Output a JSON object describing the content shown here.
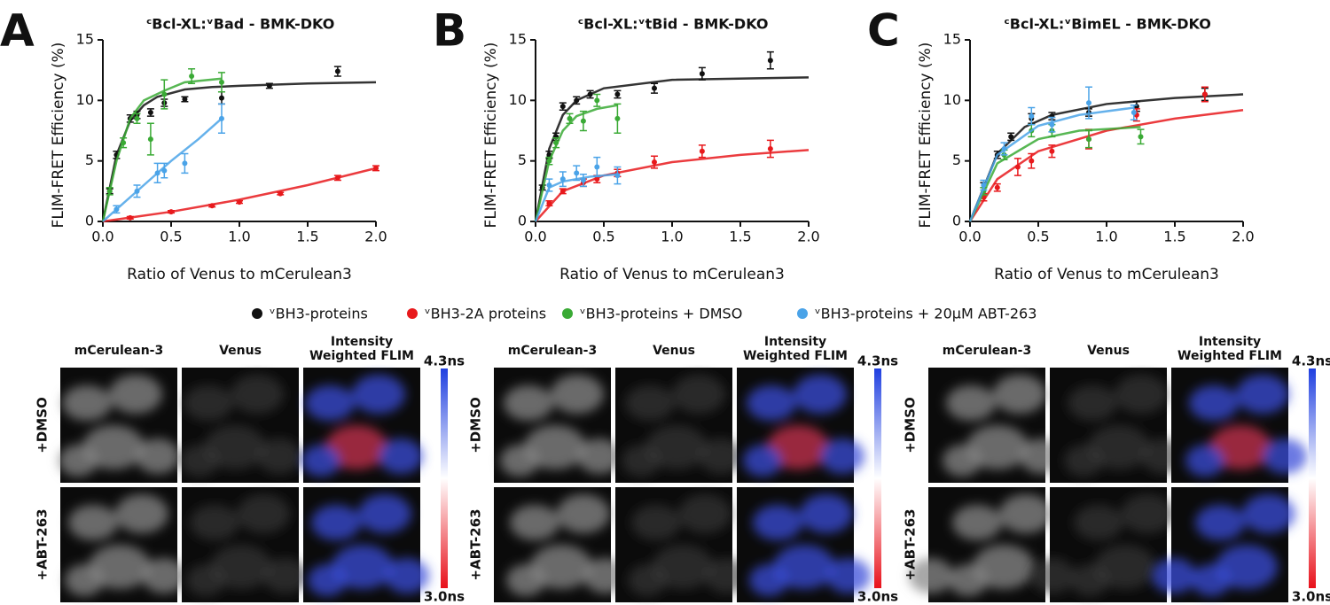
{
  "chart_data": [
    {
      "type": "scatter",
      "label": "A",
      "title": "ᶜBcl-XL:ᵛBad - BMK-DKO",
      "ylabel": "FLIM-FRET Efficiency (%)",
      "xlabel": "Ratio of Venus to mCerulean3",
      "xlim": [
        0,
        2
      ],
      "ylim": [
        0,
        15
      ],
      "xticks": [
        {
          "value": 0,
          "label": "0.0"
        },
        0.5,
        {
          "value": 1,
          "label": "1.0"
        },
        1.5,
        {
          "value": 2,
          "label": "2.0"
        }
      ],
      "yticks": [
        0,
        5,
        10,
        15
      ],
      "series": [
        {
          "name": "ᵛBH3-proteins",
          "color": "#111111",
          "x": [
            0.05,
            0.1,
            0.2,
            0.25,
            0.35,
            0.45,
            0.6,
            0.87,
            1.22,
            1.72
          ],
          "values": [
            2.5,
            5.5,
            8.5,
            8.8,
            9.0,
            9.8,
            10.1,
            10.2,
            11.2,
            12.4
          ],
          "errors": [
            0.2,
            0.3,
            0.3,
            0.3,
            0.3,
            0.3,
            0.2,
            0.5,
            0.2,
            0.4
          ],
          "fit_x": [
            0,
            0.1,
            0.2,
            0.3,
            0.4,
            0.6,
            0.8,
            1.0,
            1.5,
            2.0
          ],
          "fit_values": [
            0,
            5.5,
            8.3,
            9.6,
            10.3,
            10.9,
            11.1,
            11.2,
            11.4,
            11.5
          ]
        },
        {
          "name": "ᵛBH3-2A proteins",
          "color": "#e8191c",
          "x": [
            0.2,
            0.5,
            0.8,
            1.0,
            1.3,
            1.72,
            2.0
          ],
          "values": [
            0.3,
            0.8,
            1.3,
            1.6,
            2.3,
            3.6,
            4.4
          ],
          "errors": [
            0.1,
            0.1,
            0.1,
            0.1,
            0.1,
            0.2,
            0.2
          ],
          "fit_x": [
            0,
            0.5,
            1.0,
            1.5,
            2.0
          ],
          "fit_values": [
            0,
            0.8,
            1.8,
            3.0,
            4.4
          ]
        },
        {
          "name": "ᵛBH3-proteins + DMSO",
          "color": "#3aaa35",
          "x": [
            0.05,
            0.15,
            0.25,
            0.35,
            0.45,
            0.65,
            0.87
          ],
          "values": [
            2.5,
            6.5,
            8.5,
            6.8,
            10.5,
            12,
            11.5
          ],
          "errors": [
            0.3,
            0.4,
            0.4,
            1.3,
            1.2,
            0.6,
            0.8
          ],
          "fit_x": [
            0,
            0.1,
            0.2,
            0.3,
            0.45,
            0.6,
            0.87
          ],
          "fit_values": [
            0,
            5,
            8.5,
            10,
            10.8,
            11.5,
            11.8
          ]
        },
        {
          "name": "ᵛBH3-proteins + 20µM ABT-263",
          "color": "#4aa3e8",
          "x": [
            0.1,
            0.25,
            0.4,
            0.45,
            0.6,
            0.87
          ],
          "values": [
            1,
            2.5,
            4,
            4.2,
            4.8,
            8.5
          ],
          "errors": [
            0.3,
            0.5,
            0.8,
            0.6,
            0.8,
            1.2
          ],
          "fit_x": [
            0,
            0.1,
            0.3,
            0.5,
            0.7,
            0.87
          ],
          "fit_values": [
            0,
            1,
            3,
            5,
            6.8,
            8.5
          ]
        }
      ]
    },
    {
      "type": "scatter",
      "label": "B",
      "title": "ᶜBcl-XL:ᵛtBid - BMK-DKO",
      "ylabel": "FLIM-FRET Efficiency (%)",
      "xlabel": "Ratio of Venus to mCerulean3",
      "xlim": [
        0,
        2
      ],
      "ylim": [
        0,
        15
      ],
      "xticks": [
        {
          "value": 0,
          "label": "0.0"
        },
        0.5,
        {
          "value": 1,
          "label": "1.0"
        },
        1.5,
        {
          "value": 2,
          "label": "2.0"
        }
      ],
      "yticks": [
        0,
        5,
        10,
        15
      ],
      "series": [
        {
          "name": "ᵛBH3-proteins",
          "color": "#111111",
          "x": [
            0.05,
            0.1,
            0.15,
            0.2,
            0.3,
            0.4,
            0.6,
            0.87,
            1.22,
            1.72
          ],
          "values": [
            2.8,
            5.5,
            7,
            9.5,
            10,
            10.5,
            10.5,
            11,
            12.2,
            13.3
          ],
          "errors": [
            0.2,
            0.3,
            0.3,
            0.3,
            0.3,
            0.3,
            0.3,
            0.4,
            0.5,
            0.7
          ],
          "fit_x": [
            0,
            0.1,
            0.2,
            0.3,
            0.5,
            1.0,
            2.0
          ],
          "fit_values": [
            0,
            6,
            8.8,
            10,
            11,
            11.7,
            11.9
          ]
        },
        {
          "name": "ᵛBH3-2A proteins",
          "color": "#e8191c",
          "x": [
            0.1,
            0.2,
            0.35,
            0.45,
            0.6,
            0.87,
            1.22,
            1.72
          ],
          "values": [
            1.5,
            2.5,
            3.2,
            3.5,
            4,
            4.9,
            5.8,
            6
          ],
          "errors": [
            0.2,
            0.2,
            0.3,
            0.3,
            0.3,
            0.5,
            0.5,
            0.7
          ],
          "fit_x": [
            0,
            0.2,
            0.5,
            1.0,
            1.5,
            2.0
          ],
          "fit_values": [
            0,
            2.5,
            3.8,
            4.9,
            5.5,
            5.9
          ]
        },
        {
          "name": "ᵛBH3-proteins + DMSO",
          "color": "#3aaa35",
          "x": [
            0.1,
            0.15,
            0.25,
            0.35,
            0.45,
            0.6
          ],
          "values": [
            5,
            6.5,
            8.5,
            8.3,
            10,
            8.5
          ],
          "errors": [
            0.3,
            0.4,
            0.4,
            0.8,
            0.5,
            1.2
          ],
          "fit_x": [
            0,
            0.1,
            0.2,
            0.3,
            0.45,
            0.6
          ],
          "fit_values": [
            0,
            5,
            7.5,
            8.7,
            9.3,
            9.6
          ]
        },
        {
          "name": "ᵛBH3-proteins + 20µM ABT-263",
          "color": "#4aa3e8",
          "x": [
            0.1,
            0.2,
            0.3,
            0.35,
            0.45,
            0.6
          ],
          "values": [
            3,
            3.5,
            4,
            3.4,
            4.5,
            3.8
          ],
          "errors": [
            0.5,
            0.6,
            0.6,
            0.5,
            0.8,
            0.7
          ],
          "fit_x": [
            0,
            0.1,
            0.2,
            0.4,
            0.6
          ],
          "fit_values": [
            0,
            2.8,
            3.3,
            3.7,
            3.9
          ]
        }
      ]
    },
    {
      "type": "scatter",
      "label": "C",
      "title": "ᶜBcl-XL:ᵛBimEL - BMK-DKO",
      "ylabel": "FLIM-FRET Efficiency (%)",
      "xlabel": "Ratio of Venus to mCerulean3",
      "xlim": [
        0,
        2
      ],
      "ylim": [
        0,
        15
      ],
      "xticks": [
        {
          "value": 0,
          "label": "0.0"
        },
        0.5,
        {
          "value": 1,
          "label": "1.0"
        },
        1.5,
        {
          "value": 2,
          "label": "2.0"
        }
      ],
      "yticks": [
        0,
        5,
        10,
        15
      ],
      "series": [
        {
          "name": "ᵛBH3-proteins",
          "color": "#111111",
          "x": [
            0.1,
            0.2,
            0.3,
            0.45,
            0.6,
            0.87,
            1.22,
            1.72
          ],
          "values": [
            3,
            5.5,
            7,
            8.5,
            8.7,
            9,
            9.5,
            10.5
          ],
          "errors": [
            0.2,
            0.3,
            0.3,
            0.4,
            0.3,
            0.3,
            0.4,
            0.5
          ],
          "fit_x": [
            0,
            0.2,
            0.4,
            0.6,
            1.0,
            1.5,
            2.0
          ],
          "fit_values": [
            0,
            5.6,
            7.8,
            8.8,
            9.7,
            10.2,
            10.5
          ]
        },
        {
          "name": "ᵛBH3-2A proteins",
          "color": "#e8191c",
          "x": [
            0.1,
            0.2,
            0.35,
            0.45,
            0.6,
            0.87,
            1.22,
            1.72
          ],
          "values": [
            2,
            2.8,
            4.5,
            5,
            5.8,
            6.8,
            8.8,
            10.5
          ],
          "errors": [
            0.3,
            0.3,
            0.7,
            0.6,
            0.5,
            0.8,
            0.5,
            0.6
          ],
          "fit_x": [
            0,
            0.2,
            0.5,
            1.0,
            1.5,
            2.0
          ],
          "fit_values": [
            0,
            3.5,
            5.8,
            7.5,
            8.5,
            9.2
          ]
        },
        {
          "name": "ᵛBH3-proteins + DMSO",
          "color": "#3aaa35",
          "x": [
            0.1,
            0.25,
            0.45,
            0.6,
            0.87,
            1.25
          ],
          "values": [
            2.5,
            5.5,
            7.5,
            7.5,
            6.8,
            7
          ],
          "errors": [
            0.3,
            0.4,
            0.5,
            0.5,
            0.7,
            0.6
          ],
          "fit_x": [
            0,
            0.2,
            0.5,
            0.8,
            1.25
          ],
          "fit_values": [
            0,
            4.8,
            6.8,
            7.5,
            7.8
          ]
        },
        {
          "name": "ᵛBH3-proteins + 20µM ABT-263",
          "color": "#4aa3e8",
          "x": [
            0.1,
            0.25,
            0.45,
            0.6,
            0.87,
            1.2
          ],
          "values": [
            3,
            6,
            8.7,
            8,
            9.8,
            9
          ],
          "errors": [
            0.4,
            0.5,
            0.7,
            0.6,
            1.3,
            0.6
          ],
          "fit_x": [
            0,
            0.2,
            0.5,
            0.8,
            1.2
          ],
          "fit_values": [
            0,
            5.5,
            7.9,
            8.8,
            9.4
          ]
        }
      ]
    }
  ],
  "figure": {
    "panels": [
      {
        "columns": [
          "mCerulean-3",
          "Venus",
          "Intensity Weighted FLIM"
        ],
        "rows": [
          "+DMSO",
          "+ABT-263"
        ],
        "scale": [
          "4.3ns",
          "3.0ns"
        ]
      },
      {
        "columns": [
          "mCerulean-3",
          "Venus",
          "Intensity Weighted FLIM"
        ],
        "rows": [
          "+DMSO",
          "+ABT-263"
        ],
        "scale": [
          "4.3ns",
          "3.0ns"
        ]
      },
      {
        "columns": [
          "mCerulean-3",
          "Venus",
          "Intensity Weighted FLIM"
        ],
        "rows": [
          "+DMSO",
          "+ABT-263"
        ],
        "scale": [
          "4.3ns",
          "3.0ns"
        ]
      }
    ]
  }
}
